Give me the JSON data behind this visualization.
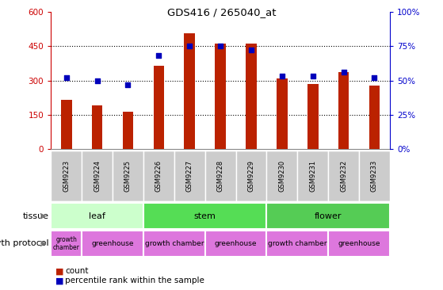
{
  "title": "GDS416 / 265040_at",
  "samples": [
    "GSM9223",
    "GSM9224",
    "GSM9225",
    "GSM9226",
    "GSM9227",
    "GSM9228",
    "GSM9229",
    "GSM9230",
    "GSM9231",
    "GSM9232",
    "GSM9233"
  ],
  "counts": [
    215,
    190,
    163,
    365,
    505,
    460,
    460,
    308,
    285,
    335,
    278
  ],
  "percentiles": [
    52,
    50,
    47,
    68,
    75,
    75,
    72,
    53,
    53,
    56,
    52
  ],
  "ylim_left": [
    0,
    600
  ],
  "ylim_right": [
    0,
    100
  ],
  "yticks_left": [
    0,
    150,
    300,
    450,
    600
  ],
  "yticks_right": [
    0,
    25,
    50,
    75,
    100
  ],
  "bar_color": "#bb2200",
  "dot_color": "#0000bb",
  "tissue_groups": [
    {
      "label": "leaf",
      "start": 0,
      "end": 3,
      "color": "#ccffcc"
    },
    {
      "label": "stem",
      "start": 3,
      "end": 7,
      "color": "#55dd55"
    },
    {
      "label": "flower",
      "start": 7,
      "end": 11,
      "color": "#55cc55"
    }
  ],
  "growth_protocol_groups": [
    {
      "label": "growth\nchamber",
      "start": 0,
      "end": 1,
      "color": "#dd77dd"
    },
    {
      "label": "greenhouse",
      "start": 1,
      "end": 3,
      "color": "#dd77dd"
    },
    {
      "label": "growth chamber",
      "start": 3,
      "end": 5,
      "color": "#dd77dd"
    },
    {
      "label": "greenhouse",
      "start": 5,
      "end": 7,
      "color": "#dd77dd"
    },
    {
      "label": "growth chamber",
      "start": 7,
      "end": 9,
      "color": "#dd77dd"
    },
    {
      "label": "greenhouse",
      "start": 9,
      "end": 11,
      "color": "#dd77dd"
    }
  ],
  "left_axis_color": "#cc0000",
  "right_axis_color": "#0000cc",
  "sample_bg_color": "#cccccc",
  "legend_items": [
    {
      "color": "#bb2200",
      "label": "count"
    },
    {
      "color": "#0000bb",
      "label": "percentile rank within the sample"
    }
  ]
}
